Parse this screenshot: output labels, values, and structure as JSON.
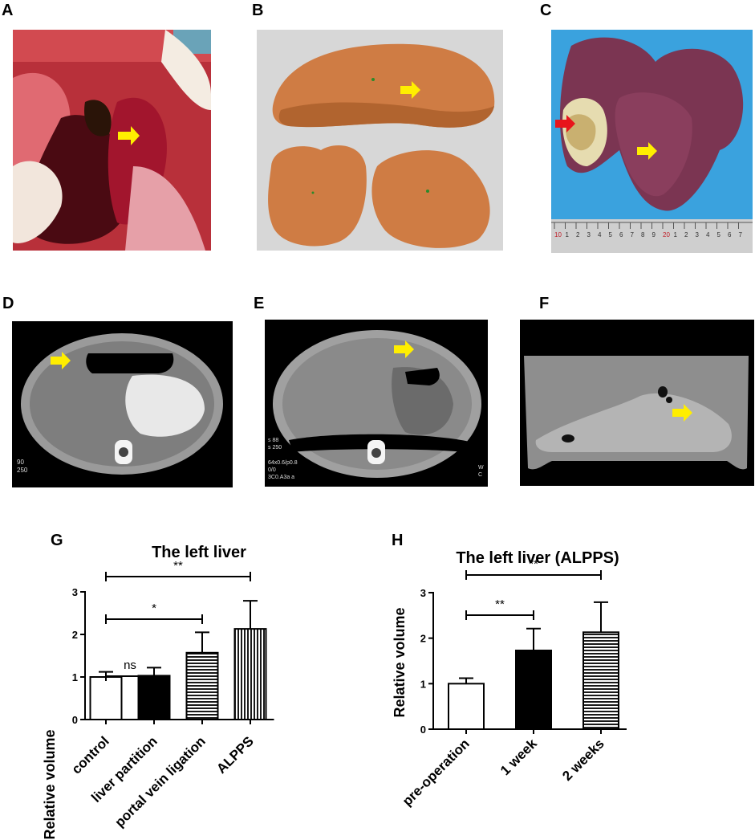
{
  "panels": {
    "a": "A",
    "b": "B",
    "c": "C",
    "d": "D",
    "e": "E",
    "f": "F",
    "g": "G",
    "h": "H"
  },
  "ct_text": {
    "d_corner": "90\n250",
    "e_corner1": "s 88\ns 250",
    "e_corner2": "64x0.6/p0.8\n0/0\n3C0.A3a a",
    "e_wc": "W\nC"
  },
  "ruler_labels": [
    "10",
    "1",
    "2",
    "3",
    "4",
    "5",
    "6",
    "7",
    "8",
    "9",
    "20",
    "1",
    "2",
    "3",
    "4",
    "5",
    "6",
    "7"
  ],
  "colors": {
    "arrow_yellow": "#ffee00",
    "arrow_red": "#e8141b",
    "liver_3d": "#d2824a",
    "ct_bg": "#000000"
  },
  "chart_data": [
    {
      "type": "bar",
      "title": "The left liver",
      "ylabel": "Relative volume",
      "xlabel": "",
      "categories": [
        "control",
        "liver partition",
        "portal vein ligation",
        "ALPPS"
      ],
      "values": [
        1.0,
        1.03,
        1.57,
        2.13
      ],
      "errors": [
        0.12,
        0.19,
        0.48,
        0.66
      ],
      "fills": [
        "white",
        "black",
        "horizontal-stripes",
        "vertical-stripes"
      ],
      "ylim": [
        0,
        3
      ],
      "yticks": [
        "0",
        "1",
        "2",
        "3"
      ],
      "significance": [
        {
          "from": 0,
          "to": 1,
          "label": "ns"
        },
        {
          "from": 0,
          "to": 2,
          "label": "*"
        },
        {
          "from": 0,
          "to": 3,
          "label": "**"
        }
      ]
    },
    {
      "type": "bar",
      "title": "The left liver (ALPPS)",
      "ylabel": "Relative volume",
      "xlabel": "",
      "categories": [
        "pre-operation",
        "1 week",
        "2 weeks"
      ],
      "values": [
        1.0,
        1.73,
        2.13
      ],
      "errors": [
        0.12,
        0.48,
        0.66
      ],
      "fills": [
        "white",
        "black",
        "horizontal-stripes"
      ],
      "ylim": [
        0,
        3
      ],
      "yticks": [
        "0",
        "1",
        "2",
        "3"
      ],
      "significance": [
        {
          "from": 0,
          "to": 1,
          "label": "**"
        },
        {
          "from": 0,
          "to": 2,
          "label": "**"
        }
      ]
    }
  ]
}
